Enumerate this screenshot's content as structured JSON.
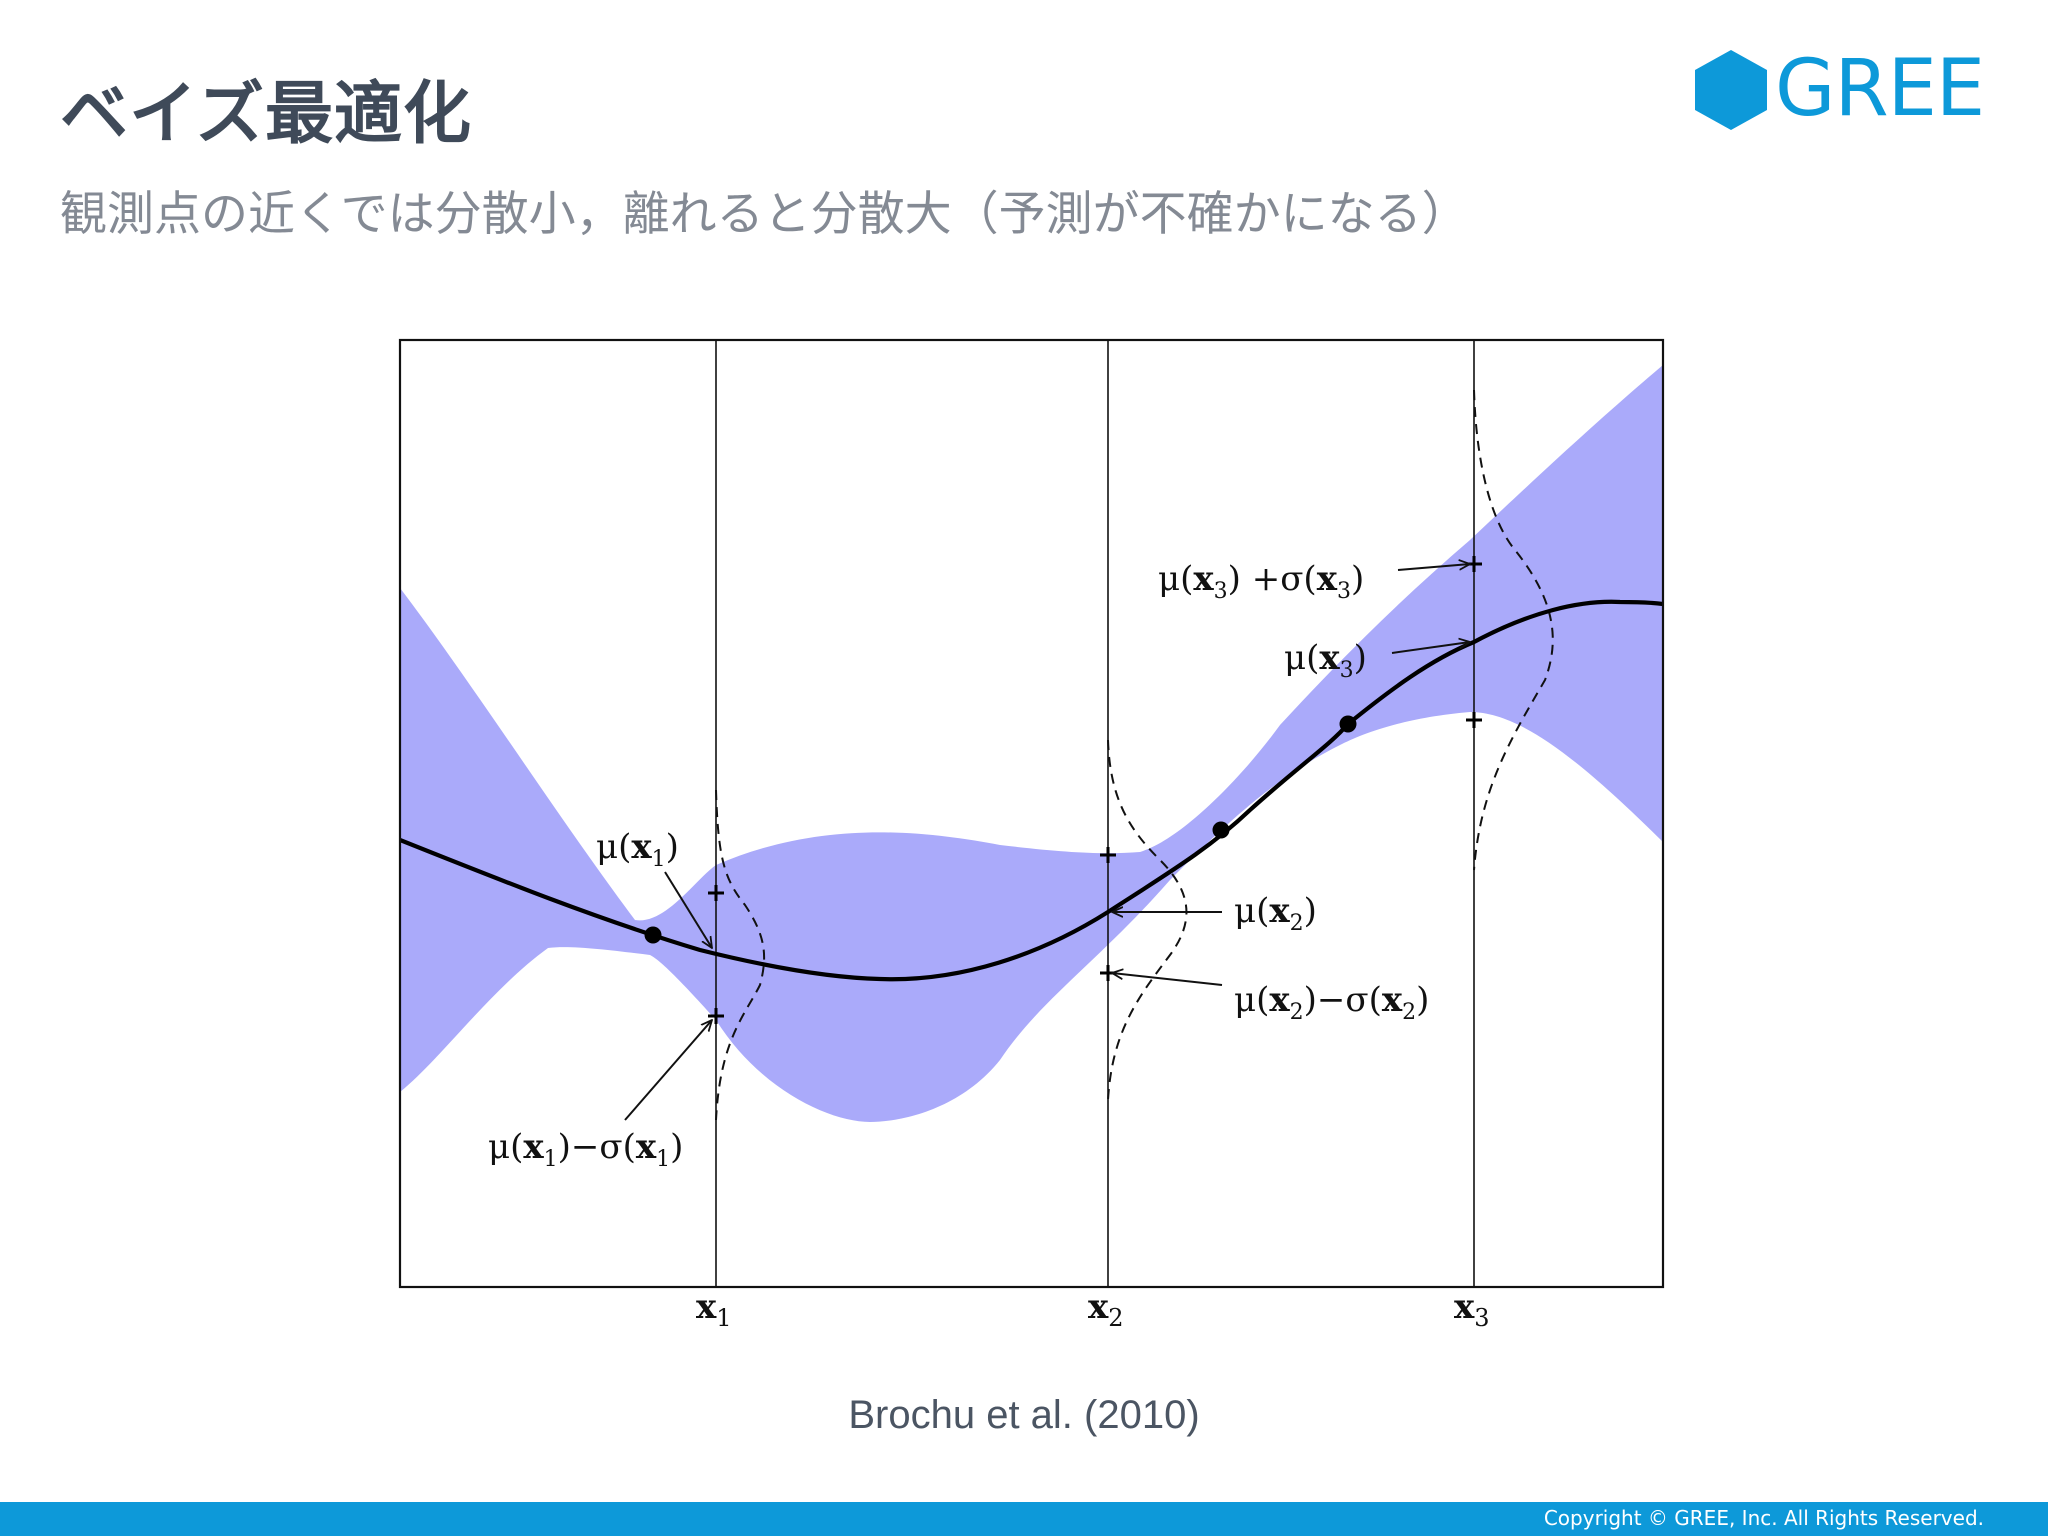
{
  "slide": {
    "title": "ベイズ最適化",
    "subtitle": "観測点の近くでは分散小，離れると分散大（予測が不確かになる）",
    "caption": "Brochu et al. (2010)",
    "copyright": "Copyright © GREE, Inc. All Rights Reserved."
  },
  "logo": {
    "text": "GREE",
    "color": "#0d99d9"
  },
  "figure": {
    "band_color": "#aaaafa",
    "axis_ticks": [
      {
        "base": "x",
        "sub": "1"
      },
      {
        "base": "x",
        "sub": "2"
      },
      {
        "base": "x",
        "sub": "3"
      }
    ],
    "annotations": {
      "mu_x1": {
        "pre": "μ(",
        "b": "x",
        "sub": "1",
        "post": ")"
      },
      "mu_x1_minus": {
        "pre": "μ(",
        "b": "x",
        "sub": "1",
        "mid": ")−σ(",
        "b2": "x",
        "sub2": "1",
        "post": ")"
      },
      "mu_x2": {
        "pre": "μ(",
        "b": "x",
        "sub": "2",
        "post": ")"
      },
      "mu_x2_minus": {
        "pre": "μ(",
        "b": "x",
        "sub": "2",
        "mid": ")−σ(",
        "b2": "x",
        "sub2": "2",
        "post": ")"
      },
      "mu_x3": {
        "pre": "μ(",
        "b": "x",
        "sub": "3",
        "post": ")"
      },
      "mu_x3_plus": {
        "pre": "μ(",
        "b": "x",
        "sub": "3",
        "mid": ") +σ(",
        "b2": "x",
        "sub2": "3",
        "post": ")"
      }
    }
  },
  "colors": {
    "title": "#3f4a59",
    "subtitle": "#848a94",
    "footer": "#0d99d9"
  }
}
